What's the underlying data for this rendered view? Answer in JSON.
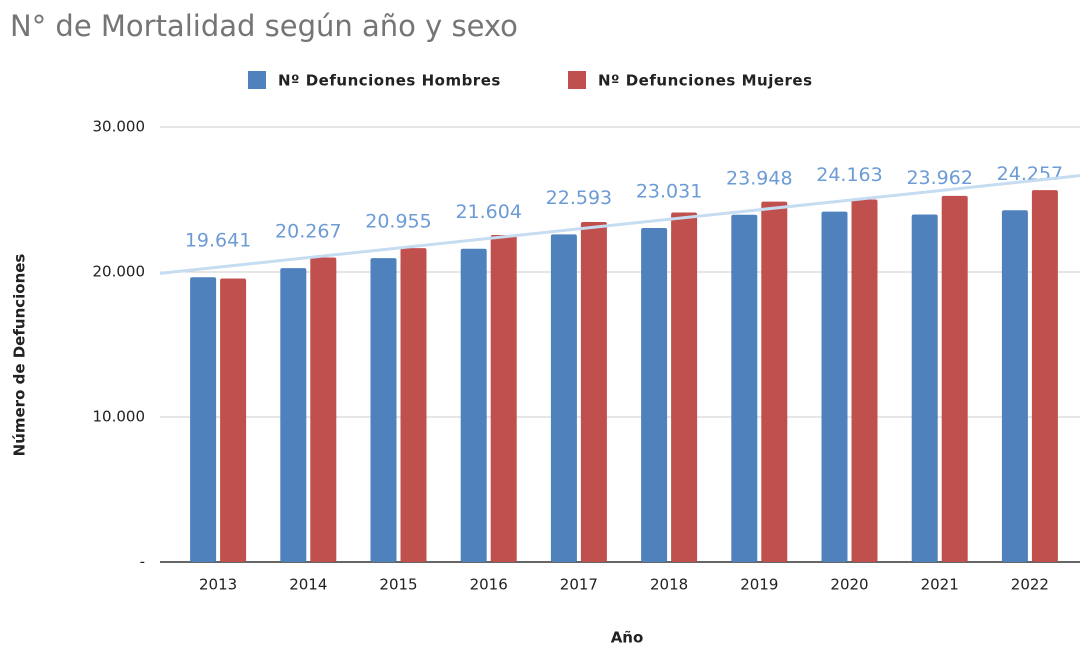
{
  "chart_data": {
    "type": "bar",
    "title": "N° de Mortalidad según año y sexo",
    "x_label": "Año",
    "y_label": "Número de Defunciones",
    "categories": [
      "2013",
      "2014",
      "2015",
      "2016",
      "2017",
      "2018",
      "2019",
      "2020",
      "2021",
      "2022"
    ],
    "series": [
      {
        "name": "Nº Defunciones Hombres",
        "color": "#4f81bd",
        "values": [
          19641,
          20267,
          20955,
          21604,
          22593,
          23031,
          23948,
          24163,
          23962,
          24257
        ],
        "value_labels": [
          "19.641",
          "20.267",
          "20.955",
          "21.604",
          "22.593",
          "23.031",
          "23.948",
          "24.163",
          "23.962",
          "24.257"
        ]
      },
      {
        "name": "Nº Defunciones Mujeres",
        "color": "#c0504d",
        "values": [
          19550,
          21000,
          21650,
          22550,
          23450,
          24100,
          24850,
          25000,
          25250,
          25650
        ],
        "trendline": true,
        "trendline_color": "#c6dcf1"
      }
    ],
    "ylim": [
      0,
      30000
    ],
    "yticks": [
      {
        "value": 0,
        "label": "-"
      },
      {
        "value": 10000,
        "label": "10.000"
      },
      {
        "value": 20000,
        "label": "20.000"
      },
      {
        "value": 30000,
        "label": "30.000"
      }
    ],
    "grid": true,
    "legend": "top"
  }
}
